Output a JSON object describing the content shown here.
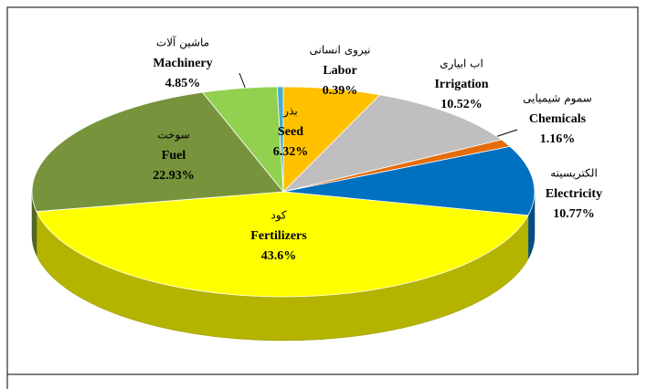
{
  "chart_data": {
    "type": "pie",
    "categories": [
      "Seed",
      "Irrigation",
      "Chemicals",
      "Electricity",
      "Fertilizers",
      "Fuel",
      "Machinery",
      "Labor"
    ],
    "labels_fa": [
      "بذر",
      "اب ابیاری",
      "سموم شیمیایی",
      "الکتریسیته",
      "کود",
      "سوخت",
      "ماشین آلات",
      "نیروی انسانی"
    ],
    "values": [
      6.32,
      10.52,
      1.16,
      10.77,
      43.6,
      22.93,
      4.85,
      0.39
    ],
    "value_labels": [
      "6.32%",
      "10.52%",
      "1.16%",
      "10.77%",
      "43.6%",
      "22.93%",
      "4.85%",
      "0.39%"
    ],
    "colors": [
      "#ffc000",
      "#bfbfbf",
      "#e46c0a",
      "#0070c0",
      "#ffff00",
      "#77933c",
      "#92d050",
      "#4aacc6"
    ]
  }
}
